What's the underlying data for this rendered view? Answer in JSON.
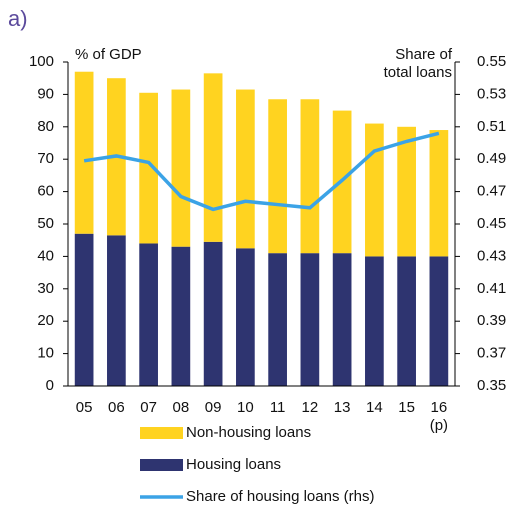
{
  "chart_data": {
    "type": "bar",
    "stacked": true,
    "panel_label": "a)",
    "y_label": "% of GDP",
    "y2_label": "Share of\ntotal loans",
    "categories": [
      "05",
      "06",
      "07",
      "08",
      "09",
      "10",
      "11",
      "12",
      "13",
      "14",
      "15",
      "16\n(p)"
    ],
    "series": [
      {
        "name": "Housing loans",
        "color": "#2e3470",
        "values": [
          47,
          46.5,
          44,
          43,
          44.5,
          42.5,
          41,
          41,
          41,
          40,
          40,
          40
        ]
      },
      {
        "name": "Non-housing loans",
        "color": "#ffd320",
        "values": [
          50,
          48.5,
          46.5,
          48.5,
          52,
          49,
          47.5,
          47.5,
          44,
          41,
          40,
          39
        ]
      },
      {
        "name": "Share of housing loans (rhs)",
        "color": "#3ba3e6",
        "type": "line",
        "axis": "y2",
        "values": [
          0.489,
          0.492,
          0.488,
          0.467,
          0.459,
          0.464,
          0.462,
          0.46,
          0.477,
          0.495,
          0.501,
          0.506
        ]
      }
    ],
    "legend_order": [
      1,
      0,
      2
    ],
    "ylim": [
      0,
      100
    ],
    "yticks": [
      0,
      10,
      20,
      30,
      40,
      50,
      60,
      70,
      80,
      90,
      100
    ],
    "y2lim": [
      0.35,
      0.55
    ],
    "y2ticks": [
      0.35,
      0.37,
      0.39,
      0.41,
      0.43,
      0.45,
      0.47,
      0.49,
      0.51,
      0.53,
      0.55
    ]
  }
}
